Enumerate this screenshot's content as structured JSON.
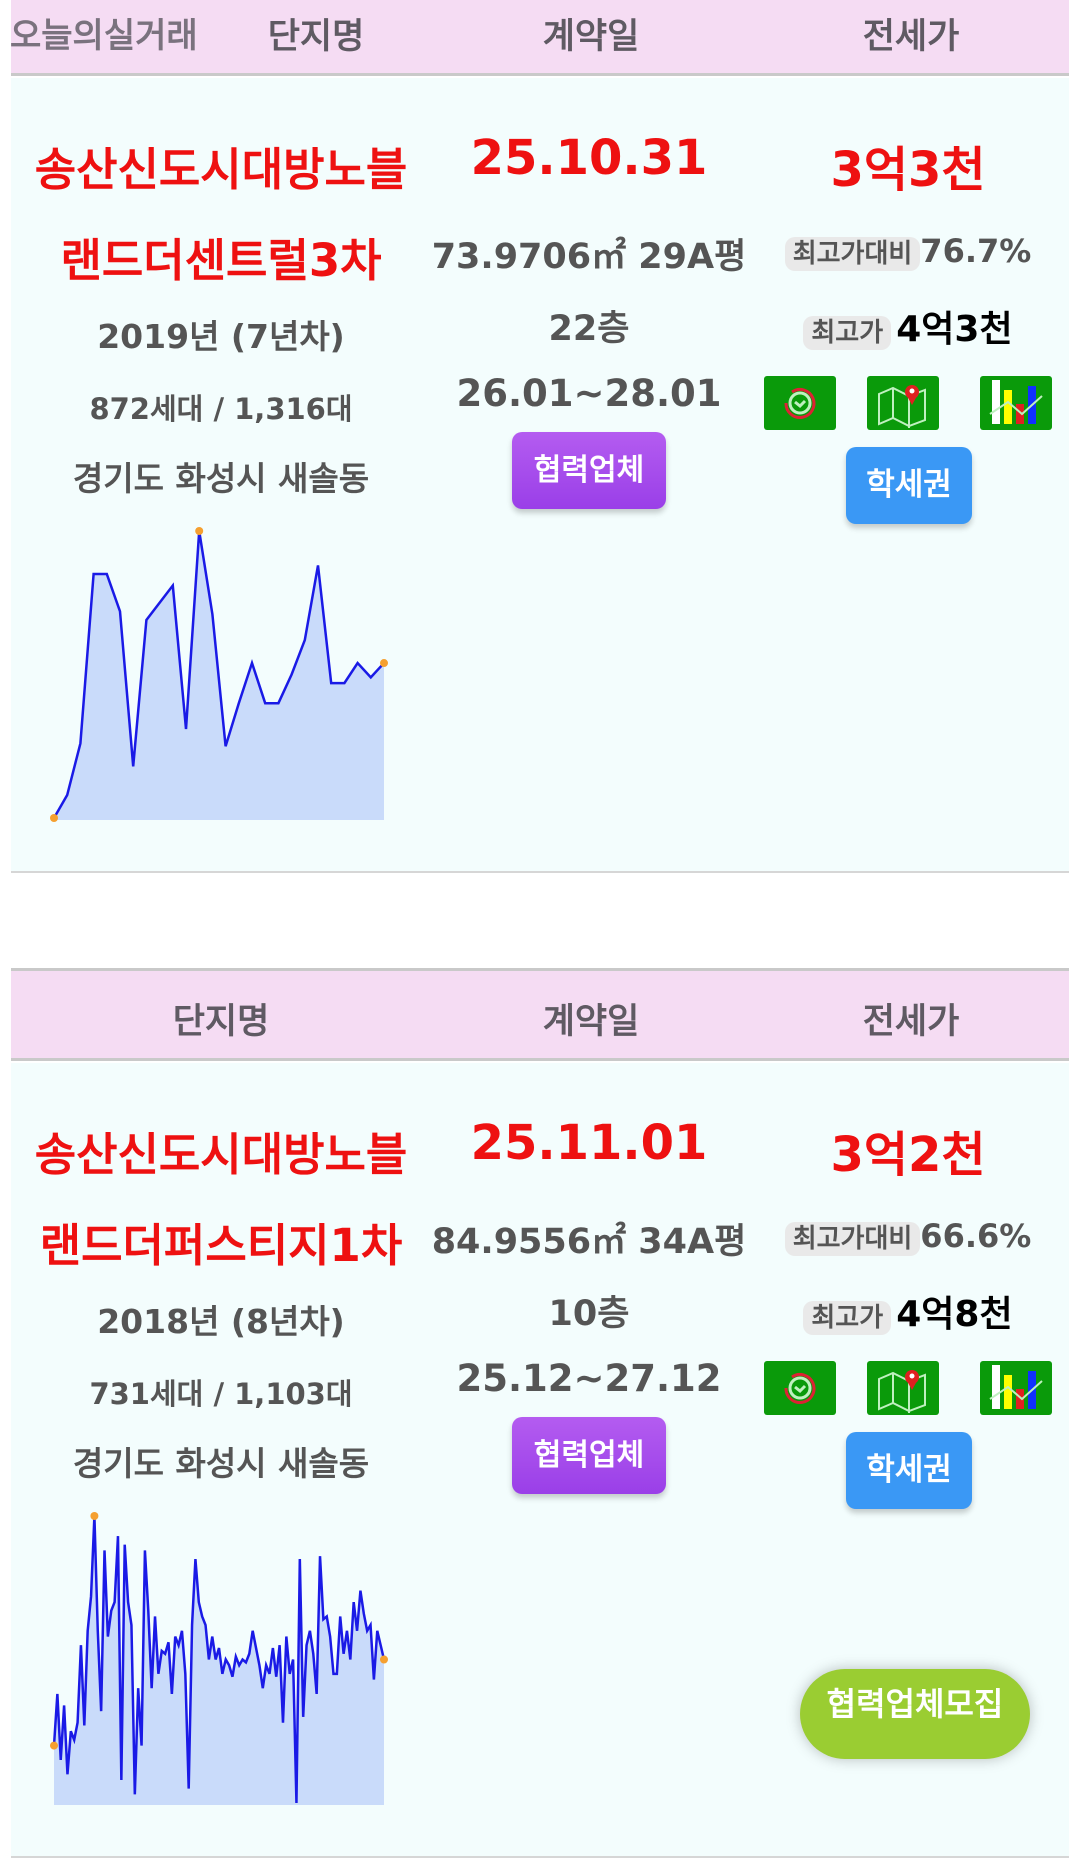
{
  "header": {
    "col_name": "단지명",
    "col_date": "계약일",
    "col_price": "전세가",
    "overlay_label": "오늘의실거래"
  },
  "listings": [
    {
      "name_line1": "송산신도시대방노블",
      "name_line2": "랜드더센트럴3차",
      "year": "2019년 (7년차)",
      "households": "872세대 / 1,316대",
      "address": "경기도 화성시 새솔동",
      "contract_date": "25.10.31",
      "area": "73.9706㎡ 29A평",
      "floor": "22층",
      "period": "26.01~28.01",
      "partner_button": "협력업체",
      "price": "3억3천",
      "ratio_label": "최고가대비",
      "ratio_value": "76.7%",
      "max_label": "최고가",
      "max_value": "4억3천",
      "school_button": "학세권",
      "icons": [
        "history-clock-icon",
        "map-pin-icon",
        "bar-chart-icon"
      ],
      "sparkline": [
        0,
        8,
        26,
        85,
        85,
        72,
        18,
        69,
        75,
        81,
        31,
        100,
        71,
        25,
        40,
        54,
        40,
        40,
        50,
        62,
        88,
        47,
        47,
        54,
        49,
        54
      ]
    },
    {
      "name_line1": "송산신도시대방노블",
      "name_line2": "랜드더퍼스티지1차",
      "year": "2018년 (8년차)",
      "households": "731세대 / 1,103대",
      "address": "경기도 화성시 새솔동",
      "contract_date": "25.11.01",
      "area": "84.9556㎡ 34A평",
      "floor": "10층",
      "period": "25.12~27.12",
      "partner_button": "협력업체",
      "price": "3억2천",
      "ratio_label": "최고가대비",
      "ratio_value": "66.6%",
      "max_label": "최고가",
      "max_value": "4억8천",
      "school_button": "학세권",
      "icons": [
        "history-clock-icon",
        "map-pin-icon",
        "bar-chart-icon"
      ],
      "sparkline": [
        20,
        38,
        15,
        34,
        10,
        25,
        22,
        28,
        55,
        27,
        60,
        72,
        100,
        60,
        32,
        88,
        58,
        67,
        70,
        93,
        8,
        90,
        70,
        62,
        3,
        40,
        20,
        88,
        67,
        40,
        65,
        45,
        53,
        52,
        56,
        38,
        58,
        55,
        60,
        45,
        5,
        62,
        85,
        70,
        65,
        62,
        50,
        58,
        50,
        54,
        45,
        50,
        48,
        44,
        51,
        48,
        50,
        49,
        52,
        60,
        54,
        48,
        40,
        48,
        45,
        54,
        44,
        55,
        28,
        58,
        45,
        50,
        0,
        85,
        30,
        55,
        60,
        52,
        38,
        86,
        64,
        65,
        58,
        45,
        45,
        65,
        52,
        60,
        50,
        70,
        60,
        74,
        66,
        60,
        62,
        43,
        60,
        55,
        50
      ]
    }
  ],
  "floating_button": "협력업체모집",
  "colors": {
    "header_bg": "#f5dcf3",
    "card_bg": "#f3fdfd",
    "accent_red": "#ee1111",
    "purple_button": "#a64cec",
    "blue_button": "#3a98f5",
    "icon_green": "#0a9a0a",
    "fab_green": "#9acd32",
    "spark_line": "#1a1ae6",
    "spark_fill": "#c9dbfa",
    "spark_marker": "#f5a030"
  }
}
